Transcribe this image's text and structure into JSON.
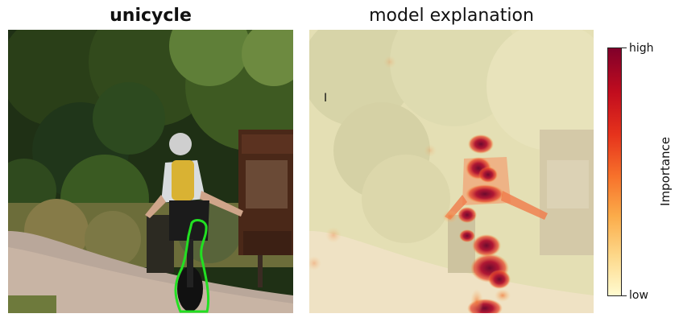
{
  "left_panel": {
    "title": "unicycle",
    "image": "photo of person riding a unicycle on a forest trail, unicycle outlined in green",
    "outline_color": "#22e022"
  },
  "right_panel": {
    "title": "model explanation",
    "image": "saliency heatmap overlay on the same photo",
    "cursor_glyph": "I"
  },
  "colorbar": {
    "label": "Importance",
    "tick_high": "high",
    "tick_low": "low",
    "colors": [
      "#80002a",
      "#c20d1e",
      "#e6331c",
      "#f7722b",
      "#fbac4a",
      "#fdd88a",
      "#fffbd0"
    ]
  }
}
